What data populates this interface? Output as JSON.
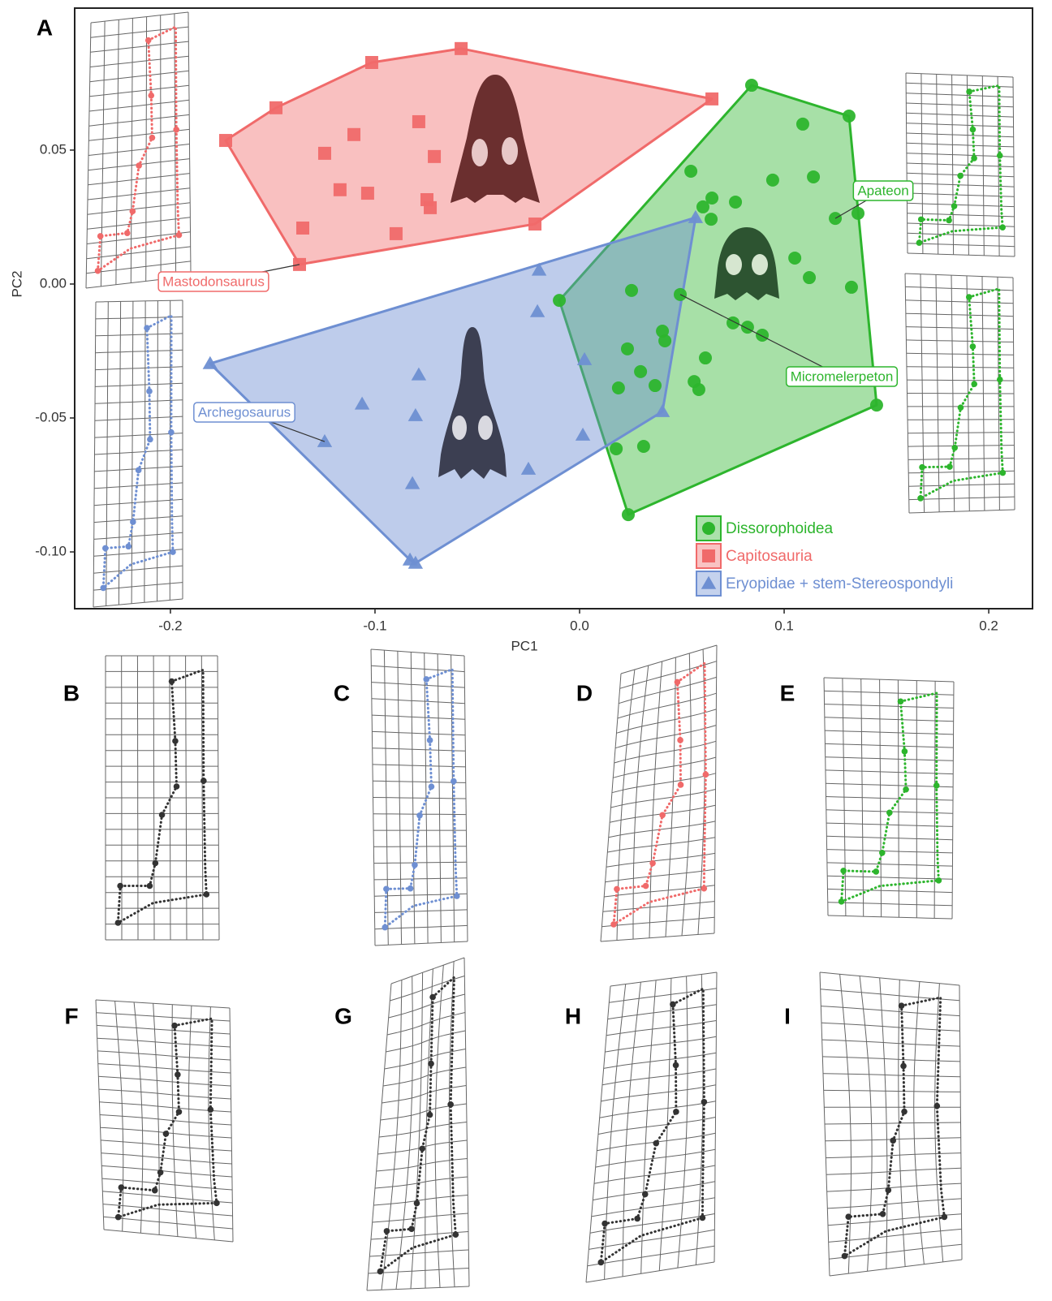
{
  "chart_data": {
    "type": "scatter",
    "xlabel": "PC1",
    "ylabel": "PC2",
    "xlim": [
      -0.2468,
      0.2214
    ],
    "ylim": [
      -0.1212,
      0.103
    ],
    "xticks": [
      {
        "value": -0.2,
        "label": "-0.2"
      },
      {
        "value": -0.1,
        "label": "-0.1"
      },
      {
        "value": 0,
        "label": "0.0"
      },
      {
        "value": 0.1,
        "label": "0.1"
      },
      {
        "value": 0.2,
        "label": "0.2"
      }
    ],
    "yticks": [
      {
        "value": -0.1,
        "label": "-0.10"
      },
      {
        "value": -0.05,
        "label": "-0.05"
      },
      {
        "value": 0,
        "label": "0.00"
      },
      {
        "value": 0.05,
        "label": "0.05"
      }
    ],
    "hulls": true,
    "series": [
      {
        "name": "Dissorophoidea",
        "color": "#2db52d",
        "marker": "circle",
        "x": [
          0.0841,
          0.1317,
          0.1091,
          0.0544,
          0.0944,
          0.1143,
          0.0603,
          0.0647,
          0.0762,
          0.0643,
          0.125,
          0.1361,
          0.1052,
          0.1123,
          0.1329,
          -0.0099,
          0.0254,
          0.0492,
          0.075,
          0.0821,
          0.0893,
          0.0405,
          0.0417,
          0.0234,
          0.0615,
          0.0298,
          0.019,
          0.0369,
          0.056,
          0.0583,
          0.1452,
          0.0179,
          0.0313,
          0.0238
        ],
        "y": [
          0.0742,
          0.0627,
          0.0597,
          0.0421,
          0.0388,
          0.04,
          0.0288,
          0.0321,
          0.0306,
          0.0242,
          0.0245,
          0.0264,
          0.0097,
          0.0024,
          -0.0012,
          -0.0061,
          -0.0024,
          -0.0039,
          -0.0145,
          -0.0161,
          -0.0191,
          -0.0176,
          -0.0212,
          -0.0242,
          -0.0276,
          -0.0327,
          -0.0388,
          -0.0379,
          -0.0364,
          -0.0394,
          -0.0452,
          -0.0615,
          -0.0606,
          -0.0861
        ]
      },
      {
        "name": "Capitosauria",
        "color": "#f06a6a",
        "marker": "square",
        "x": [
          -0.0579,
          -0.1016,
          0.0647,
          -0.1484,
          -0.173,
          -0.0786,
          -0.1103,
          -0.1246,
          -0.071,
          -0.1171,
          -0.1036,
          -0.0746,
          -0.073,
          -0.1353,
          -0.0897,
          -0.0218,
          -0.1369
        ],
        "y": [
          0.0879,
          0.0827,
          0.0691,
          0.0658,
          0.0536,
          0.0606,
          0.0558,
          0.0488,
          0.0476,
          0.0352,
          0.0339,
          0.0315,
          0.0285,
          0.0209,
          0.0188,
          0.0224,
          0.0073
        ]
      },
      {
        "name": "Eryopidae + stem-Stereospondyli",
        "color": "#6e8fd2",
        "marker": "triangle",
        "x": [
          0.0567,
          -0.0198,
          -0.0206,
          -0.1806,
          0.0024,
          -0.0786,
          -0.1063,
          -0.0802,
          -0.1246,
          0.0016,
          0.0405,
          -0.025,
          -0.0817,
          -0.0829,
          -0.0802
        ],
        "y": [
          0.0248,
          0.0052,
          -0.0103,
          -0.0297,
          -0.0282,
          -0.0339,
          -0.0448,
          -0.0491,
          -0.0588,
          -0.0564,
          -0.0476,
          -0.0691,
          -0.0745,
          -0.103,
          -0.1042
        ]
      }
    ],
    "annotations": [
      {
        "text": "Mastodonsaurus",
        "series": 1,
        "point": 16
      },
      {
        "text": "Apateon",
        "series": 0,
        "point": 10
      },
      {
        "text": "Micromelerpeton",
        "series": 0,
        "point": 17
      },
      {
        "text": "Archegosaurus",
        "series": 2,
        "point": 8
      }
    ]
  },
  "panel_labels": [
    "A",
    "B",
    "C",
    "D",
    "E",
    "F",
    "G",
    "H",
    "I"
  ]
}
